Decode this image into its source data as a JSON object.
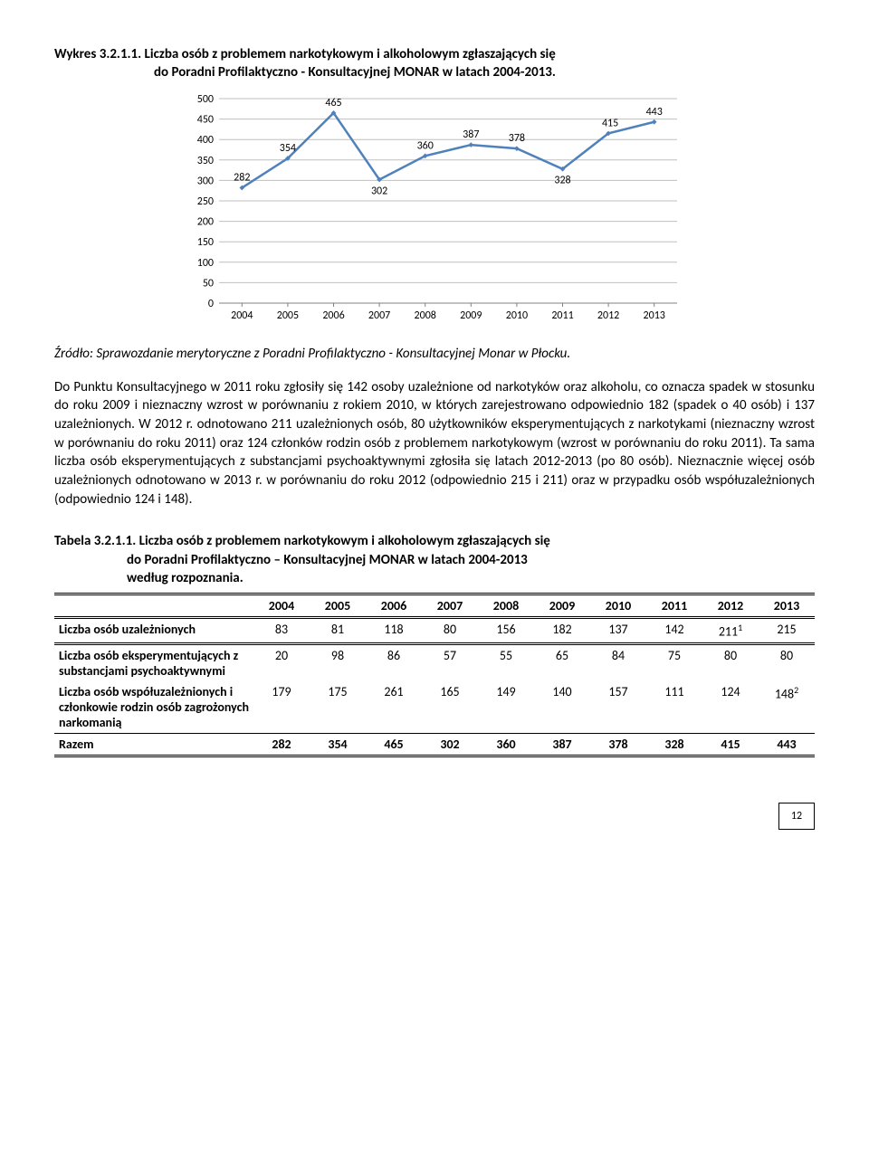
{
  "chart_heading": {
    "line1": "Wykres 3.2.1.1.  Liczba osób z problemem narkotykowym i alkoholowym zgłaszających się",
    "line2": "do Poradni Profilaktyczno - Konsultacyjnej MONAR w latach 2004-2013."
  },
  "chart": {
    "type": "line",
    "categories": [
      "2004",
      "2005",
      "2006",
      "2007",
      "2008",
      "2009",
      "2010",
      "2011",
      "2012",
      "2013"
    ],
    "values": [
      282,
      354,
      465,
      302,
      360,
      387,
      378,
      328,
      415,
      443
    ],
    "ylim": [
      0,
      500
    ],
    "ytick_step": 50,
    "line_color": "#4f81bd",
    "marker_color": "#4f81bd",
    "grid_color": "#bfbfbf",
    "axis_color": "#808080",
    "text_color": "#000000",
    "background_color": "#ffffff",
    "line_width": 2.5,
    "marker_size": 4,
    "label_fontsize": 12,
    "tick_fontsize": 12
  },
  "source": "Źródło: Sprawozdanie merytoryczne z Poradni Profilaktyczno - Konsultacyjnej Monar w Płocku.",
  "body": "Do Punktu Konsultacyjnego w 2011 roku zgłosiły się 142 osoby uzależnione od narkotyków oraz alkoholu, co oznacza spadek w stosunku do roku 2009 i nieznaczny wzrost w porównaniu z rokiem 2010, w których zarejestrowano odpowiednio 182 (spadek o 40 osób) i 137 uzależnionych.  W 2012 r. odnotowano 211 uzależnionych osób, 80 użytkowników eksperymentujących z narkotykami (nieznaczny wzrost w porównaniu do roku 2011) oraz 124 członków rodzin osób z problemem narkotykowym (wzrost w porównaniu do roku 2011). Ta sama liczba osób eksperymentujących z substancjami psychoaktywnymi zgłosiła się  latach 2012-2013 (po 80 osób). Nieznacznie więcej osób uzależnionych odnotowano w 2013 r. w porównaniu do roku 2012 (odpowiednio 215 i 211) oraz w przypadku osób współuzależnionych (odpowiednio 124 i 148).",
  "table_heading": {
    "line1": "Tabela 3.2.1.1. Liczba osób z problemem narkotykowym i alkoholowym zgłaszających się",
    "line2": "do Poradni Profilaktyczno – Konsultacyjnej MONAR w latach 2004-2013",
    "line3": "według rozpoznania."
  },
  "table": {
    "years": [
      "2004",
      "2005",
      "2006",
      "2007",
      "2008",
      "2009",
      "2010",
      "2011",
      "2012",
      "2013"
    ],
    "rows": [
      {
        "label": "Liczba osób uzależnionych",
        "vals": [
          "83",
          "81",
          "118",
          "80",
          "156",
          "182",
          "137",
          "142",
          "211",
          "215"
        ],
        "sup": [
          "",
          "",
          "",
          "",
          "",
          "",
          "",
          "",
          "1",
          ""
        ]
      },
      {
        "label": "Liczba osób eksperymentujących z substancjami psychoaktywnymi",
        "vals": [
          "20",
          "98",
          "86",
          "57",
          "55",
          "65",
          "84",
          "75",
          "80",
          "80"
        ],
        "sup": [
          "",
          "",
          "",
          "",
          "",
          "",
          "",
          "",
          "",
          ""
        ]
      },
      {
        "label": "Liczba osób współuzależnionych i członkowie rodzin osób zagrożonych narkomanią",
        "vals": [
          "179",
          "175",
          "261",
          "165",
          "149",
          "140",
          "157",
          "111",
          "124",
          "148"
        ],
        "sup": [
          "",
          "",
          "",
          "",
          "",
          "",
          "",
          "",
          "",
          "2"
        ]
      },
      {
        "label": "Razem",
        "vals": [
          "282",
          "354",
          "465",
          "302",
          "360",
          "387",
          "378",
          "328",
          "415",
          "443"
        ],
        "sup": [
          "",
          "",
          "",
          "",
          "",
          "",
          "",
          "",
          "",
          ""
        ]
      }
    ]
  },
  "page_number": "12"
}
